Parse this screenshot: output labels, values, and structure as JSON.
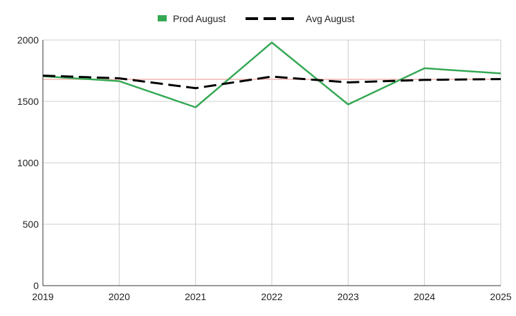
{
  "chart_data": {
    "type": "line",
    "title": "",
    "xlabel": "",
    "ylabel": "",
    "x": [
      2019,
      2020,
      2021,
      2022,
      2023,
      2024,
      2025
    ],
    "xlim": [
      2019,
      2025
    ],
    "ylim": [
      0,
      2000
    ],
    "yticks": [
      0,
      500,
      1000,
      1500,
      2000
    ],
    "grid": true,
    "legend_position": "top-center",
    "series": [
      {
        "name": "Prod August",
        "style": "solid",
        "color": "#34a853",
        "values": [
          1705,
          1665,
          1452,
          1980,
          1475,
          1770,
          1728
        ]
      },
      {
        "name": "Avg August",
        "style": "dashed",
        "color": "#000000",
        "values": [
          1710,
          1688,
          1608,
          1702,
          1655,
          1675,
          1682
        ]
      }
    ],
    "reference_line": {
      "color": "#f4c7c3",
      "value": 1680
    }
  }
}
